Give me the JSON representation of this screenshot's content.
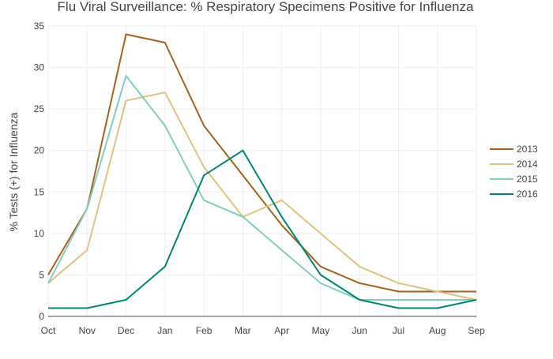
{
  "chart_data": {
    "type": "line",
    "title": "Flu Viral Surveillance: % Respiratory Specimens Positive for Influenza",
    "xlabel": "",
    "ylabel": "% Tests (+) for Influenza",
    "categories": [
      "Oct",
      "Nov",
      "Dec",
      "Jan",
      "Feb",
      "Mar",
      "Apr",
      "May",
      "Jun",
      "Jul",
      "Aug",
      "Sep"
    ],
    "ylim": [
      0,
      35
    ],
    "yticks": [
      0,
      5,
      10,
      15,
      20,
      25,
      30,
      35
    ],
    "grid": true,
    "legend_position": "right",
    "series": [
      {
        "name": "2013",
        "color": "#a6611a",
        "values": [
          5,
          13,
          34,
          33,
          23,
          17,
          11,
          6,
          4,
          3,
          3,
          3
        ]
      },
      {
        "name": "2014",
        "color": "#dfc27d",
        "values": [
          4,
          8,
          26,
          27,
          18,
          12,
          14,
          10,
          6,
          4,
          3,
          2
        ]
      },
      {
        "name": "2015",
        "color": "#80cdc1",
        "values": [
          4,
          13,
          29,
          23,
          14,
          12,
          8,
          4,
          2,
          2,
          2,
          2
        ]
      },
      {
        "name": "2016",
        "color": "#018571",
        "values": [
          1,
          1,
          2,
          6,
          17,
          20,
          12,
          5,
          2,
          1,
          1,
          2
        ]
      }
    ]
  }
}
